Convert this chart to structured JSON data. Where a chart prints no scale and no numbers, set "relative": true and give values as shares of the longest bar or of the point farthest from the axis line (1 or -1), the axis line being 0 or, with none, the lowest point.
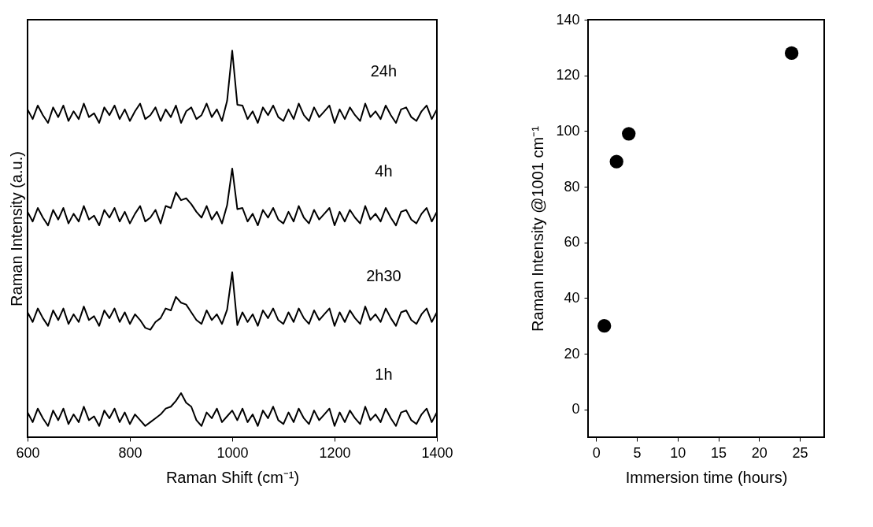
{
  "chart_data": [
    {
      "type": "line",
      "relative": true,
      "xlabel": "Raman Shift (cm⁻¹)",
      "ylabel": "Raman Intensity (a.u.)",
      "xlim": [
        600,
        1400
      ],
      "xticks": [
        600,
        800,
        1000,
        1200,
        1400
      ],
      "grid": false,
      "legend": false,
      "marker": "none",
      "line_style": "solid",
      "x": [
        600,
        610,
        620,
        630,
        640,
        650,
        660,
        670,
        680,
        690,
        700,
        710,
        720,
        730,
        740,
        750,
        760,
        770,
        780,
        790,
        800,
        810,
        820,
        830,
        840,
        850,
        860,
        870,
        880,
        890,
        900,
        910,
        920,
        930,
        940,
        950,
        960,
        970,
        980,
        990,
        1000,
        1010,
        1020,
        1030,
        1040,
        1050,
        1060,
        1070,
        1080,
        1090,
        1100,
        1110,
        1120,
        1130,
        1140,
        1150,
        1160,
        1170,
        1180,
        1190,
        1200,
        1210,
        1220,
        1230,
        1240,
        1250,
        1260,
        1270,
        1280,
        1290,
        1300,
        1310,
        1320,
        1330,
        1340,
        1350,
        1360,
        1370,
        1380,
        1390,
        1400
      ],
      "series": [
        {
          "name": "24h",
          "color": "#000000",
          "values": [
            0.848,
            0.823,
            0.858,
            0.833,
            0.813,
            0.853,
            0.828,
            0.858,
            0.818,
            0.843,
            0.823,
            0.863,
            0.828,
            0.838,
            0.813,
            0.853,
            0.833,
            0.858,
            0.823,
            0.848,
            0.818,
            0.843,
            0.863,
            0.823,
            0.833,
            0.853,
            0.818,
            0.848,
            0.828,
            0.858,
            0.813,
            0.843,
            0.853,
            0.823,
            0.833,
            0.863,
            0.828,
            0.848,
            0.818,
            0.87,
            1.0,
            0.86,
            0.858,
            0.823,
            0.843,
            0.813,
            0.853,
            0.833,
            0.858,
            0.828,
            0.818,
            0.848,
            0.823,
            0.863,
            0.833,
            0.818,
            0.853,
            0.828,
            0.843,
            0.858,
            0.813,
            0.848,
            0.823,
            0.853,
            0.833,
            0.818,
            0.863,
            0.828,
            0.843,
            0.823,
            0.858,
            0.833,
            0.813,
            0.848,
            0.853,
            0.828,
            0.818,
            0.843,
            0.858,
            0.823,
            0.848
          ]
        },
        {
          "name": "4h",
          "color": "#000000",
          "values": [
            0.583,
            0.558,
            0.593,
            0.568,
            0.548,
            0.588,
            0.563,
            0.593,
            0.553,
            0.578,
            0.558,
            0.598,
            0.563,
            0.573,
            0.548,
            0.588,
            0.568,
            0.593,
            0.558,
            0.583,
            0.553,
            0.578,
            0.598,
            0.558,
            0.568,
            0.588,
            0.553,
            0.598,
            0.593,
            0.633,
            0.613,
            0.618,
            0.603,
            0.583,
            0.568,
            0.598,
            0.563,
            0.583,
            0.553,
            0.6,
            0.695,
            0.59,
            0.593,
            0.558,
            0.578,
            0.548,
            0.588,
            0.568,
            0.593,
            0.563,
            0.553,
            0.583,
            0.558,
            0.598,
            0.568,
            0.553,
            0.588,
            0.563,
            0.578,
            0.593,
            0.548,
            0.583,
            0.558,
            0.588,
            0.568,
            0.553,
            0.598,
            0.563,
            0.578,
            0.558,
            0.593,
            0.568,
            0.548,
            0.583,
            0.588,
            0.563,
            0.553,
            0.578,
            0.593,
            0.558,
            0.583
          ]
        },
        {
          "name": "2h30",
          "color": "#000000",
          "values": [
            0.323,
            0.298,
            0.333,
            0.308,
            0.288,
            0.328,
            0.303,
            0.333,
            0.293,
            0.318,
            0.298,
            0.338,
            0.303,
            0.313,
            0.288,
            0.328,
            0.308,
            0.333,
            0.298,
            0.323,
            0.293,
            0.318,
            0.303,
            0.283,
            0.278,
            0.298,
            0.308,
            0.333,
            0.328,
            0.363,
            0.348,
            0.343,
            0.323,
            0.303,
            0.293,
            0.328,
            0.303,
            0.318,
            0.293,
            0.33,
            0.427,
            0.29,
            0.323,
            0.298,
            0.318,
            0.288,
            0.328,
            0.308,
            0.333,
            0.303,
            0.293,
            0.323,
            0.298,
            0.333,
            0.308,
            0.293,
            0.328,
            0.303,
            0.318,
            0.333,
            0.288,
            0.323,
            0.298,
            0.328,
            0.308,
            0.293,
            0.338,
            0.303,
            0.318,
            0.298,
            0.333,
            0.308,
            0.288,
            0.323,
            0.328,
            0.303,
            0.293,
            0.318,
            0.333,
            0.298,
            0.323
          ]
        },
        {
          "name": "1h",
          "color": "#000000",
          "values": [
            0.064,
            0.039,
            0.074,
            0.049,
            0.029,
            0.069,
            0.044,
            0.074,
            0.034,
            0.059,
            0.039,
            0.079,
            0.044,
            0.054,
            0.029,
            0.069,
            0.049,
            0.074,
            0.039,
            0.064,
            0.034,
            0.059,
            0.044,
            0.029,
            0.039,
            0.049,
            0.059,
            0.074,
            0.079,
            0.094,
            0.114,
            0.089,
            0.079,
            0.044,
            0.029,
            0.064,
            0.049,
            0.074,
            0.039,
            0.054,
            0.069,
            0.044,
            0.074,
            0.039,
            0.059,
            0.029,
            0.069,
            0.049,
            0.079,
            0.044,
            0.034,
            0.064,
            0.039,
            0.074,
            0.049,
            0.034,
            0.069,
            0.044,
            0.059,
            0.074,
            0.029,
            0.064,
            0.039,
            0.069,
            0.049,
            0.034,
            0.079,
            0.044,
            0.059,
            0.039,
            0.074,
            0.049,
            0.029,
            0.064,
            0.069,
            0.044,
            0.034,
            0.059,
            0.074,
            0.039,
            0.064
          ]
        }
      ]
    },
    {
      "type": "scatter",
      "xlabel": "Immersion time (hours)",
      "ylabel": "Raman Intensity @1001 cm⁻¹",
      "xlim": [
        -1,
        28
      ],
      "xticks": [
        0,
        5,
        10,
        15,
        20,
        25
      ],
      "ylim": [
        -10,
        140
      ],
      "yticks": [
        0,
        20,
        40,
        60,
        80,
        100,
        120,
        140
      ],
      "grid": false,
      "marker": "circle",
      "x": [
        1,
        2.5,
        4,
        24
      ],
      "series": [
        {
          "color": "#000000",
          "values": [
            30,
            89,
            99,
            128
          ]
        }
      ]
    }
  ]
}
